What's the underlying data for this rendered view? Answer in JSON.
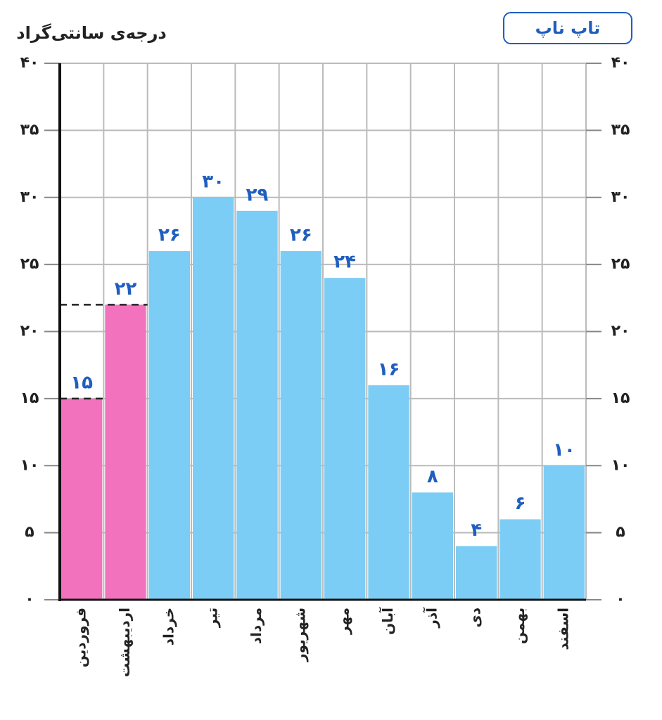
{
  "chart_data": {
    "type": "bar",
    "title": "درجه‌ی سانتی‌گراد",
    "badge": "تاپ ناپ",
    "categories": [
      "فروردین",
      "اردیبهشت",
      "خرداد",
      "تیر",
      "مرداد",
      "شهریور",
      "مهر",
      "آبان",
      "آذر",
      "دی",
      "بهمن",
      "اسفند"
    ],
    "values": [
      15,
      22,
      26,
      30,
      29,
      26,
      24,
      16,
      8,
      4,
      6,
      10
    ],
    "value_labels": [
      "۱۵",
      "۲۲",
      "۲۶",
      "۳۰",
      "۲۹",
      "۲۶",
      "۲۴",
      "۱۶",
      "۸",
      "۴",
      "۶",
      "۱۰"
    ],
    "colors": [
      "#f372bd",
      "#f372bd",
      "#7ccdf5",
      "#7ccdf5",
      "#7ccdf5",
      "#7ccdf5",
      "#7ccdf5",
      "#7ccdf5",
      "#7ccdf5",
      "#7ccdf5",
      "#7ccdf5",
      "#7ccdf5"
    ],
    "dashed_guides": [
      0,
      1
    ],
    "ylim": [
      0,
      40
    ],
    "yticks": [
      {
        "value": 0,
        "label": "۰"
      },
      {
        "value": 5,
        "label": "۵"
      },
      {
        "value": 10,
        "label": "۱۰"
      },
      {
        "value": 15,
        "label": "۱۵"
      },
      {
        "value": 20,
        "label": "۲۰"
      },
      {
        "value": 25,
        "label": "۲۵"
      },
      {
        "value": 30,
        "label": "۳۰"
      },
      {
        "value": 35,
        "label": "۳۵"
      },
      {
        "value": 40,
        "label": "۴۰"
      }
    ],
    "grid": true
  }
}
